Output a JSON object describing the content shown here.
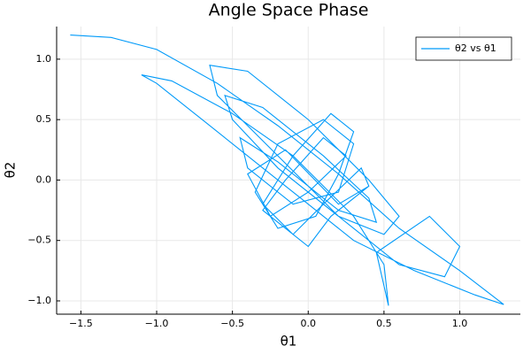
{
  "chart_data": {
    "type": "line",
    "title": "Angle Space Phase",
    "x_label": "θ1",
    "y_label": "θ2",
    "xlim": [
      -1.66,
      1.4
    ],
    "ylim": [
      -1.11,
      1.27
    ],
    "xticks": [
      {
        "value": -1.5,
        "label": "−1.5"
      },
      {
        "value": -1.0,
        "label": "−1.0"
      },
      {
        "value": -0.5,
        "label": "−0.5"
      },
      {
        "value": 0.0,
        "label": "0.0"
      },
      {
        "value": 0.5,
        "label": "0.5"
      },
      {
        "value": 1.0,
        "label": "1.0"
      }
    ],
    "yticks": [
      {
        "value": -1.0,
        "label": "−1.0"
      },
      {
        "value": -0.5,
        "label": "−0.5"
      },
      {
        "value": 0.0,
        "label": "0.0"
      },
      {
        "value": 0.5,
        "label": "0.5"
      },
      {
        "value": 1.0,
        "label": "1.0"
      }
    ],
    "grid": true,
    "legend": "top-right",
    "series": [
      {
        "name": "θ2 vs θ1",
        "color": "#009af9",
        "x": [
          -1.57,
          -1.3,
          -1.0,
          -0.6,
          -0.2,
          0.2,
          0.6,
          1.0,
          1.29,
          1.1,
          0.7,
          0.3,
          0.0,
          -0.3,
          -0.7,
          -1.0,
          -1.1,
          -0.9,
          -0.5,
          -0.1,
          0.3,
          0.5,
          0.53,
          0.45,
          0.8,
          1.0,
          0.9,
          0.6,
          0.2,
          -0.2,
          -0.6,
          -0.65,
          -0.4,
          0.0,
          0.4,
          0.6,
          0.5,
          0.2,
          -0.2,
          -0.5,
          -0.55,
          -0.3,
          0.1,
          0.4,
          0.45,
          0.2,
          -0.2,
          -0.45,
          -0.4,
          -0.1,
          0.2,
          0.3,
          0.1,
          -0.2,
          -0.35,
          -0.2,
          0.05,
          0.2,
          0.3,
          0.15,
          -0.1,
          -0.3,
          -0.1,
          0.1,
          0.35,
          0.4,
          0.2,
          -0.15,
          -0.4,
          -0.25,
          0.0,
          0.25,
          0.1,
          -0.15,
          -0.3,
          0.0,
          0.15,
          0.4
        ],
        "y": [
          1.2,
          1.18,
          1.08,
          0.8,
          0.45,
          0.05,
          -0.4,
          -0.75,
          -1.03,
          -0.95,
          -0.75,
          -0.5,
          -0.2,
          0.1,
          0.5,
          0.8,
          0.87,
          0.82,
          0.55,
          0.2,
          -0.3,
          -0.7,
          -1.04,
          -0.6,
          -0.3,
          -0.55,
          -0.8,
          -0.7,
          -0.3,
          0.2,
          0.7,
          0.95,
          0.9,
          0.5,
          0.0,
          -0.3,
          -0.45,
          -0.3,
          0.1,
          0.5,
          0.7,
          0.6,
          0.2,
          -0.15,
          -0.35,
          -0.25,
          0.15,
          0.35,
          0.1,
          -0.2,
          -0.1,
          0.3,
          0.5,
          0.3,
          -0.1,
          -0.4,
          -0.3,
          0.05,
          0.4,
          0.55,
          0.2,
          -0.2,
          -0.45,
          -0.2,
          0.1,
          -0.05,
          -0.2,
          0.25,
          0.05,
          -0.3,
          -0.1,
          0.2,
          0.35,
          0.0,
          -0.25,
          -0.55,
          -0.3,
          -0.05
        ]
      }
    ]
  }
}
